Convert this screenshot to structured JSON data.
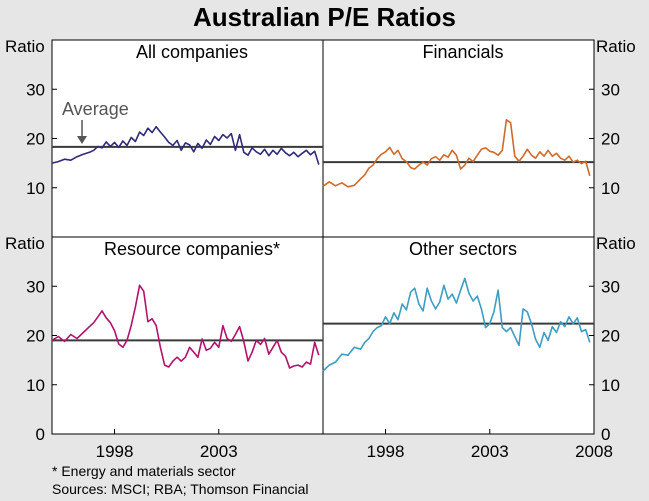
{
  "chart_data": {
    "type": "line",
    "title": "Australian P/E Ratios",
    "ylabel": "Ratio",
    "ylim": [
      0,
      40
    ],
    "y_ticks": [
      0,
      10,
      20,
      30
    ],
    "x_ticks": [
      "1998",
      "2003",
      "2008"
    ],
    "x_tick_values": [
      1998,
      2003,
      2008
    ],
    "xlim": [
      1995.0,
      2008.0
    ],
    "average_label": "Average",
    "footnote": "* Energy and materials sector",
    "sources": "Sources: MSCI; RBA; Thomson Financial",
    "panels": [
      {
        "title": "All companies",
        "color": "#2e2a78",
        "average": 18.3,
        "series": [
          [
            1995.0,
            15
          ],
          [
            1995.3,
            15.3
          ],
          [
            1995.6,
            15.8
          ],
          [
            1995.9,
            15.6
          ],
          [
            1996.2,
            16.3
          ],
          [
            1996.5,
            16.8
          ],
          [
            1996.8,
            17.2
          ],
          [
            1997.0,
            17.6
          ],
          [
            1997.2,
            18.4
          ],
          [
            1997.4,
            18.1
          ],
          [
            1997.6,
            19.3
          ],
          [
            1997.8,
            18.4
          ],
          [
            1998.0,
            19.2
          ],
          [
            1998.2,
            18.2
          ],
          [
            1998.4,
            19.5
          ],
          [
            1998.6,
            18.6
          ],
          [
            1998.8,
            20.2
          ],
          [
            1999.0,
            19.4
          ],
          [
            1999.2,
            21.3
          ],
          [
            1999.4,
            20.6
          ],
          [
            1999.6,
            22.1
          ],
          [
            1999.8,
            21.2
          ],
          [
            2000.0,
            22.4
          ],
          [
            2000.2,
            21.3
          ],
          [
            2000.4,
            20.3
          ],
          [
            2000.6,
            19.2
          ],
          [
            2000.8,
            18.6
          ],
          [
            2001.0,
            19.6
          ],
          [
            2001.2,
            17.6
          ],
          [
            2001.4,
            19.1
          ],
          [
            2001.6,
            18.7
          ],
          [
            2001.8,
            17.3
          ],
          [
            2002.0,
            19.0
          ],
          [
            2002.2,
            18.0
          ],
          [
            2002.4,
            19.7
          ],
          [
            2002.6,
            18.8
          ],
          [
            2002.8,
            20.4
          ],
          [
            2003.0,
            19.6
          ],
          [
            2003.2,
            20.8
          ],
          [
            2003.4,
            20.1
          ],
          [
            2003.6,
            21.0
          ],
          [
            2003.8,
            17.6
          ],
          [
            2004.0,
            20.8
          ],
          [
            2004.2,
            17.2
          ],
          [
            2004.4,
            16.6
          ],
          [
            2004.6,
            18.1
          ],
          [
            2004.8,
            17.3
          ],
          [
            2005.0,
            16.8
          ],
          [
            2005.2,
            17.8
          ],
          [
            2005.4,
            16.5
          ],
          [
            2005.6,
            17.6
          ],
          [
            2005.8,
            16.8
          ],
          [
            2006.0,
            18.0
          ],
          [
            2006.2,
            17.1
          ],
          [
            2006.4,
            16.5
          ],
          [
            2006.6,
            17.2
          ],
          [
            2006.8,
            16.3
          ],
          [
            2007.0,
            17.0
          ],
          [
            2007.2,
            17.6
          ],
          [
            2007.4,
            16.7
          ],
          [
            2007.6,
            17.4
          ],
          [
            2007.8,
            14.7
          ]
        ]
      },
      {
        "title": "Financials",
        "color": "#cf6a2a",
        "average": 15.2,
        "series": [
          [
            1995.0,
            10.3
          ],
          [
            1995.3,
            11.2
          ],
          [
            1995.6,
            10.4
          ],
          [
            1995.9,
            11.0
          ],
          [
            1996.2,
            10.2
          ],
          [
            1996.5,
            10.5
          ],
          [
            1996.8,
            11.8
          ],
          [
            1997.0,
            12.6
          ],
          [
            1997.2,
            14.0
          ],
          [
            1997.4,
            14.6
          ],
          [
            1997.6,
            15.9
          ],
          [
            1997.8,
            16.8
          ],
          [
            1998.0,
            17.3
          ],
          [
            1998.2,
            18.2
          ],
          [
            1998.4,
            16.8
          ],
          [
            1998.6,
            17.6
          ],
          [
            1998.8,
            15.9
          ],
          [
            1999.0,
            15.3
          ],
          [
            1999.2,
            14.1
          ],
          [
            1999.4,
            13.8
          ],
          [
            1999.6,
            14.6
          ],
          [
            1999.8,
            15.2
          ],
          [
            2000.0,
            14.6
          ],
          [
            2000.2,
            15.9
          ],
          [
            2000.4,
            16.3
          ],
          [
            2000.6,
            15.6
          ],
          [
            2000.8,
            16.7
          ],
          [
            2001.0,
            16.2
          ],
          [
            2001.2,
            17.6
          ],
          [
            2001.4,
            16.6
          ],
          [
            2001.6,
            13.8
          ],
          [
            2001.8,
            14.6
          ],
          [
            2002.0,
            16.0
          ],
          [
            2002.2,
            15.3
          ],
          [
            2002.4,
            16.6
          ],
          [
            2002.6,
            17.8
          ],
          [
            2002.8,
            18.1
          ],
          [
            2003.0,
            17.4
          ],
          [
            2003.2,
            17.2
          ],
          [
            2003.4,
            16.6
          ],
          [
            2003.6,
            17.6
          ],
          [
            2003.8,
            23.8
          ],
          [
            2004.0,
            23.2
          ],
          [
            2004.2,
            16.4
          ],
          [
            2004.4,
            15.4
          ],
          [
            2004.6,
            16.4
          ],
          [
            2004.8,
            17.8
          ],
          [
            2005.0,
            16.6
          ],
          [
            2005.2,
            16.0
          ],
          [
            2005.4,
            17.3
          ],
          [
            2005.6,
            16.4
          ],
          [
            2005.8,
            17.6
          ],
          [
            2006.0,
            16.4
          ],
          [
            2006.2,
            17.0
          ],
          [
            2006.4,
            16.0
          ],
          [
            2006.6,
            15.6
          ],
          [
            2006.8,
            16.4
          ],
          [
            2007.0,
            15.2
          ],
          [
            2007.2,
            15.6
          ],
          [
            2007.4,
            14.9
          ],
          [
            2007.6,
            15.4
          ],
          [
            2007.8,
            12.4
          ]
        ]
      },
      {
        "title": "Resource companies*",
        "color": "#b3126a",
        "average": 19.0,
        "series": [
          [
            1995.0,
            19.0
          ],
          [
            1995.3,
            19.8
          ],
          [
            1995.6,
            18.8
          ],
          [
            1995.9,
            20.2
          ],
          [
            1996.2,
            19.4
          ],
          [
            1996.5,
            20.6
          ],
          [
            1996.8,
            21.8
          ],
          [
            1997.0,
            22.6
          ],
          [
            1997.2,
            23.8
          ],
          [
            1997.4,
            25.0
          ],
          [
            1997.6,
            23.6
          ],
          [
            1997.8,
            22.6
          ],
          [
            1998.0,
            21.0
          ],
          [
            1998.2,
            18.3
          ],
          [
            1998.4,
            17.6
          ],
          [
            1998.6,
            19.0
          ],
          [
            1998.8,
            22.0
          ],
          [
            1999.0,
            25.8
          ],
          [
            1999.2,
            30.2
          ],
          [
            1999.4,
            29.0
          ],
          [
            1999.6,
            22.8
          ],
          [
            1999.8,
            23.4
          ],
          [
            2000.0,
            22.0
          ],
          [
            2000.2,
            17.6
          ],
          [
            2000.4,
            14.0
          ],
          [
            2000.6,
            13.6
          ],
          [
            2000.8,
            14.8
          ],
          [
            2001.0,
            15.6
          ],
          [
            2001.2,
            14.8
          ],
          [
            2001.4,
            15.6
          ],
          [
            2001.6,
            17.6
          ],
          [
            2001.8,
            16.6
          ],
          [
            2002.0,
            15.6
          ],
          [
            2002.2,
            19.3
          ],
          [
            2002.4,
            17.0
          ],
          [
            2002.6,
            17.4
          ],
          [
            2002.8,
            18.6
          ],
          [
            2003.0,
            17.6
          ],
          [
            2003.2,
            22.0
          ],
          [
            2003.4,
            19.4
          ],
          [
            2003.6,
            18.8
          ],
          [
            2003.8,
            20.2
          ],
          [
            2004.0,
            21.8
          ],
          [
            2004.2,
            18.8
          ],
          [
            2004.4,
            14.8
          ],
          [
            2004.6,
            16.6
          ],
          [
            2004.8,
            19.0
          ],
          [
            2005.0,
            18.2
          ],
          [
            2005.2,
            19.4
          ],
          [
            2005.4,
            16.2
          ],
          [
            2005.6,
            17.6
          ],
          [
            2005.8,
            19.0
          ],
          [
            2006.0,
            16.6
          ],
          [
            2006.2,
            15.8
          ],
          [
            2006.4,
            13.4
          ],
          [
            2006.6,
            13.8
          ],
          [
            2006.8,
            14.0
          ],
          [
            2007.0,
            13.6
          ],
          [
            2007.2,
            14.6
          ],
          [
            2007.4,
            14.2
          ],
          [
            2007.6,
            18.6
          ],
          [
            2007.8,
            16.0
          ]
        ]
      },
      {
        "title": "Other sectors",
        "color": "#3b9ec4",
        "average": 22.4,
        "series": [
          [
            1995.0,
            12.8
          ],
          [
            1995.3,
            14.0
          ],
          [
            1995.6,
            14.6
          ],
          [
            1995.9,
            16.2
          ],
          [
            1996.2,
            16.0
          ],
          [
            1996.5,
            17.6
          ],
          [
            1996.8,
            17.2
          ],
          [
            1997.0,
            18.6
          ],
          [
            1997.2,
            19.4
          ],
          [
            1997.4,
            20.8
          ],
          [
            1997.6,
            21.6
          ],
          [
            1997.8,
            22.0
          ],
          [
            1998.0,
            23.8
          ],
          [
            1998.2,
            22.4
          ],
          [
            1998.4,
            24.6
          ],
          [
            1998.6,
            23.2
          ],
          [
            1998.8,
            26.4
          ],
          [
            1999.0,
            25.2
          ],
          [
            1999.2,
            28.8
          ],
          [
            1999.4,
            29.6
          ],
          [
            1999.6,
            26.4
          ],
          [
            1999.8,
            25.0
          ],
          [
            2000.0,
            29.6
          ],
          [
            2000.2,
            27.0
          ],
          [
            2000.4,
            25.4
          ],
          [
            2000.6,
            26.8
          ],
          [
            2000.8,
            30.2
          ],
          [
            2001.0,
            27.4
          ],
          [
            2001.2,
            28.4
          ],
          [
            2001.4,
            26.6
          ],
          [
            2001.6,
            29.2
          ],
          [
            2001.8,
            31.6
          ],
          [
            2002.0,
            28.6
          ],
          [
            2002.2,
            27.0
          ],
          [
            2002.4,
            28.0
          ],
          [
            2002.6,
            25.4
          ],
          [
            2002.8,
            21.6
          ],
          [
            2003.0,
            22.4
          ],
          [
            2003.2,
            24.8
          ],
          [
            2003.4,
            29.2
          ],
          [
            2003.6,
            21.6
          ],
          [
            2003.8,
            20.8
          ],
          [
            2004.0,
            21.6
          ],
          [
            2004.2,
            19.8
          ],
          [
            2004.4,
            18.0
          ],
          [
            2004.6,
            25.4
          ],
          [
            2004.8,
            24.8
          ],
          [
            2005.0,
            22.4
          ],
          [
            2005.2,
            19.2
          ],
          [
            2005.4,
            17.6
          ],
          [
            2005.6,
            20.6
          ],
          [
            2005.8,
            19.0
          ],
          [
            2006.0,
            21.8
          ],
          [
            2006.2,
            20.6
          ],
          [
            2006.4,
            22.8
          ],
          [
            2006.6,
            21.8
          ],
          [
            2006.8,
            23.8
          ],
          [
            2007.0,
            22.4
          ],
          [
            2007.2,
            23.6
          ],
          [
            2007.4,
            20.8
          ],
          [
            2007.6,
            21.2
          ],
          [
            2007.8,
            18.6
          ]
        ]
      }
    ]
  }
}
